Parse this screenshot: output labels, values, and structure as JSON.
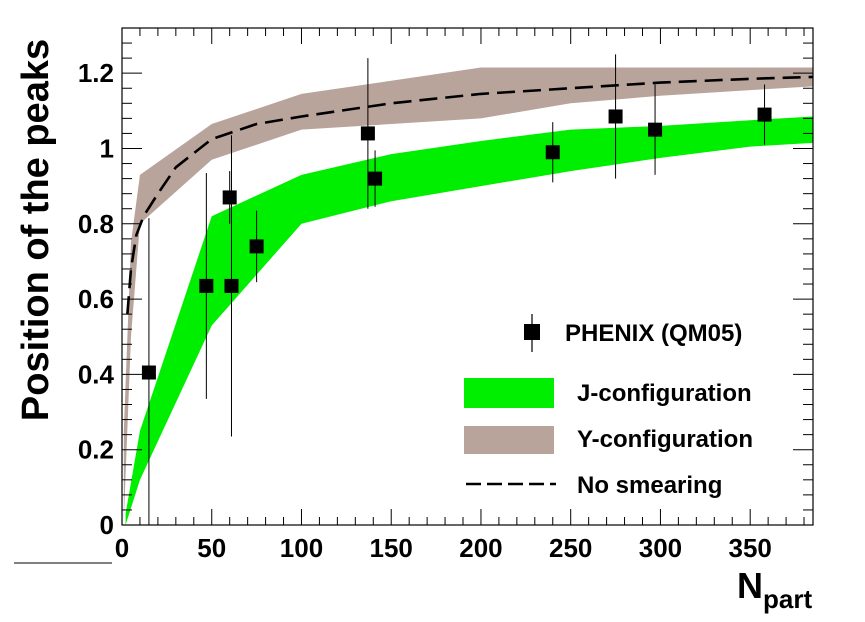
{
  "chart_data": {
    "type": "mixed",
    "xlabel": "N",
    "xlabel_sub": "part",
    "ylabel": "Position of the peaks",
    "xlim": [
      0,
      385
    ],
    "ylim": [
      0,
      1.32
    ],
    "x_ticks": [
      0,
      50,
      100,
      150,
      200,
      250,
      300,
      350
    ],
    "x_tick_labels": [
      "0",
      "50",
      "100",
      "150",
      "200",
      "250",
      "300",
      "350"
    ],
    "y_ticks": [
      0,
      0.2,
      0.4,
      0.6,
      0.8,
      1.0,
      1.2
    ],
    "y_tick_labels": [
      "0",
      "0.2",
      "0.4",
      "0.6",
      "0.8",
      "1",
      "1.2"
    ],
    "series": [
      {
        "name": "PHENIX (QM05)",
        "kind": "points",
        "color": "#000000",
        "x": [
          15,
          47,
          60,
          61,
          75,
          137,
          141,
          240,
          275,
          297,
          358
        ],
        "y": [
          0.405,
          0.635,
          0.87,
          0.635,
          0.74,
          1.04,
          0.92,
          0.99,
          1.085,
          1.05,
          1.09
        ],
        "yerr": [
          0.41,
          0.3,
          0.07,
          0.4,
          0.095,
          0.2,
          0.075,
          0.08,
          0.165,
          0.12,
          0.08
        ]
      },
      {
        "name": "J-configuration",
        "kind": "band",
        "color": "#00ee00",
        "x": [
          2,
          10,
          50,
          100,
          150,
          200,
          250,
          300,
          350,
          385
        ],
        "y_low": [
          0.0,
          0.12,
          0.53,
          0.8,
          0.86,
          0.9,
          0.94,
          0.975,
          1.005,
          1.015
        ],
        "y_high": [
          0.03,
          0.25,
          0.82,
          0.93,
          0.985,
          1.02,
          1.05,
          1.06,
          1.075,
          1.085
        ]
      },
      {
        "name": "Y-configuration",
        "kind": "band",
        "color": "#b8a49b",
        "x": [
          1,
          5,
          10,
          50,
          100,
          150,
          200,
          250,
          300,
          350,
          385
        ],
        "y_low": [
          0.01,
          0.5,
          0.8,
          0.97,
          1.05,
          1.065,
          1.08,
          1.12,
          1.14,
          1.155,
          1.165
        ],
        "y_high": [
          0.25,
          0.75,
          0.93,
          1.065,
          1.145,
          1.18,
          1.215,
          1.215,
          1.215,
          1.215,
          1.215
        ]
      },
      {
        "name": "No smearing",
        "kind": "line",
        "style": "dashed",
        "color": "#000000",
        "x": [
          3,
          5,
          8,
          12,
          20,
          30,
          50,
          75,
          100,
          150,
          200,
          250,
          300,
          350,
          385
        ],
        "y": [
          0.56,
          0.68,
          0.77,
          0.82,
          0.88,
          0.95,
          1.025,
          1.065,
          1.085,
          1.12,
          1.145,
          1.16,
          1.175,
          1.185,
          1.19
        ]
      }
    ],
    "legend": {
      "placement": "bottom-right",
      "entries": [
        "PHENIX (QM05)",
        "J-configuration",
        "Y-configuration",
        "No smearing"
      ]
    }
  }
}
